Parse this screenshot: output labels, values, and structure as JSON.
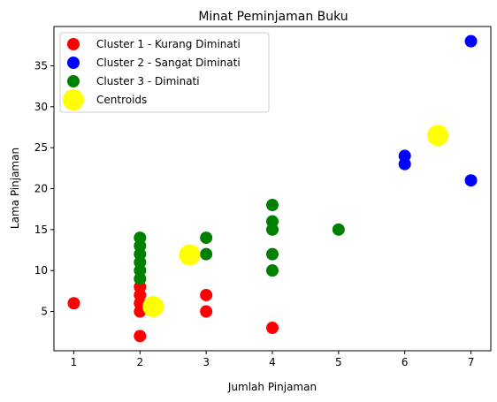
{
  "chart_data": {
    "type": "scatter",
    "title": "Minat Peminjaman Buku",
    "xlabel": "Jumlah Pinjaman",
    "ylabel": "Lama Pinjaman",
    "xlim": [
      0.7,
      7.3
    ],
    "ylim": [
      0.2,
      39.8
    ],
    "xticks": [
      1,
      2,
      3,
      4,
      5,
      6,
      7
    ],
    "yticks": [
      5,
      10,
      15,
      20,
      25,
      30,
      35
    ],
    "grid": false,
    "legend_position": "top-left",
    "series": [
      {
        "name": "Cluster 1 - Kurang Diminati",
        "color": "#ff0000",
        "marker": "small",
        "points": [
          [
            1,
            6
          ],
          [
            2,
            2
          ],
          [
            2,
            5
          ],
          [
            2,
            6
          ],
          [
            2,
            7
          ],
          [
            2,
            8
          ],
          [
            3,
            5
          ],
          [
            3,
            7
          ],
          [
            4,
            3
          ]
        ]
      },
      {
        "name": "Cluster 2 - Sangat Diminati",
        "color": "#0000ff",
        "marker": "small",
        "points": [
          [
            6,
            23
          ],
          [
            6,
            24
          ],
          [
            7,
            21
          ],
          [
            7,
            38
          ]
        ]
      },
      {
        "name": "Cluster 3 - Diminati",
        "color": "#008000",
        "marker": "small",
        "points": [
          [
            2,
            9
          ],
          [
            2,
            10
          ],
          [
            2,
            11
          ],
          [
            2,
            12
          ],
          [
            2,
            13
          ],
          [
            2,
            14
          ],
          [
            3,
            12
          ],
          [
            3,
            14
          ],
          [
            4,
            10
          ],
          [
            4,
            12
          ],
          [
            4,
            15
          ],
          [
            4,
            16
          ],
          [
            4,
            18
          ],
          [
            5,
            15
          ]
        ]
      },
      {
        "name": "Centroids",
        "color": "#ffff00",
        "marker": "large",
        "points": [
          [
            2.2,
            5.6
          ],
          [
            2.75,
            11.9
          ],
          [
            6.5,
            26.5
          ]
        ]
      }
    ]
  }
}
